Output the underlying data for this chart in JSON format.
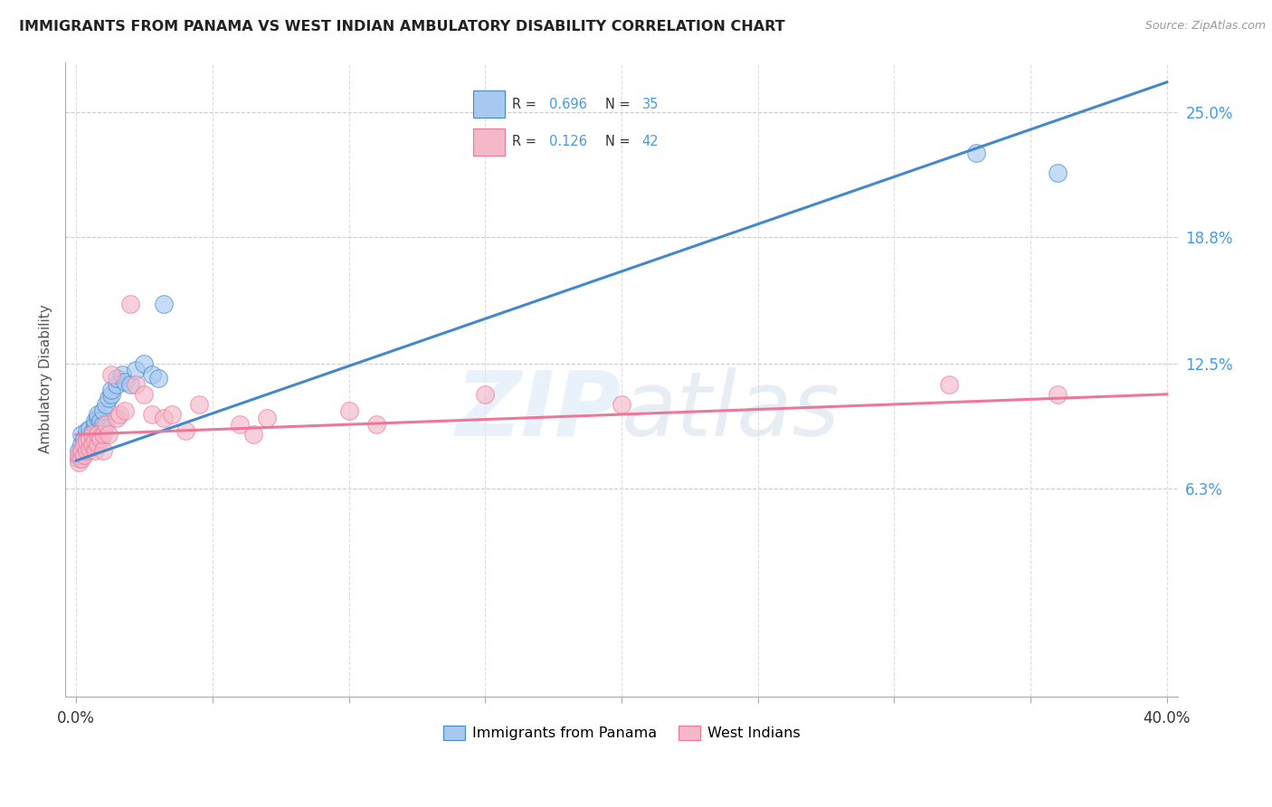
{
  "title": "IMMIGRANTS FROM PANAMA VS WEST INDIAN AMBULATORY DISABILITY CORRELATION CHART",
  "source": "Source: ZipAtlas.com",
  "ylabel": "Ambulatory Disability",
  "color_panama": "#A8C8F0",
  "color_westindian": "#F5B8C8",
  "color_line_panama": "#4488CC",
  "color_line_westindian": "#EE7799",
  "color_r_value": "#4499EE",
  "background_color": "#FFFFFF",
  "xlim": [
    -0.004,
    0.404
  ],
  "ylim": [
    -0.04,
    0.275
  ],
  "ytick_vals": [
    0.063,
    0.125,
    0.188,
    0.25
  ],
  "ytick_labels": [
    "6.3%",
    "12.5%",
    "18.8%",
    "25.0%"
  ],
  "xtick_positions": [
    0.0,
    0.05,
    0.1,
    0.15,
    0.2,
    0.25,
    0.3,
    0.35,
    0.4
  ],
  "panama_line_x0": 0.0,
  "panama_line_y0": 0.077,
  "panama_line_x1": 0.4,
  "panama_line_y1": 0.265,
  "wi_line_x0": 0.0,
  "wi_line_y0": 0.09,
  "wi_line_x1": 0.4,
  "wi_line_y1": 0.11,
  "panama_x": [
    0.001,
    0.001,
    0.002,
    0.002,
    0.002,
    0.003,
    0.003,
    0.004,
    0.004,
    0.005,
    0.005,
    0.006,
    0.007,
    0.007,
    0.008,
    0.008,
    0.009,
    0.01,
    0.01,
    0.011,
    0.012,
    0.013,
    0.013,
    0.015,
    0.015,
    0.017,
    0.018,
    0.02,
    0.022,
    0.025,
    0.028,
    0.03,
    0.032,
    0.33,
    0.36
  ],
  "panama_y": [
    0.078,
    0.082,
    0.08,
    0.085,
    0.09,
    0.083,
    0.088,
    0.086,
    0.092,
    0.088,
    0.093,
    0.091,
    0.095,
    0.097,
    0.098,
    0.1,
    0.097,
    0.095,
    0.102,
    0.105,
    0.108,
    0.11,
    0.112,
    0.115,
    0.118,
    0.12,
    0.116,
    0.115,
    0.122,
    0.125,
    0.12,
    0.118,
    0.155,
    0.23,
    0.22
  ],
  "westindian_x": [
    0.001,
    0.001,
    0.002,
    0.002,
    0.003,
    0.003,
    0.004,
    0.004,
    0.005,
    0.005,
    0.006,
    0.006,
    0.007,
    0.007,
    0.008,
    0.008,
    0.009,
    0.01,
    0.01,
    0.011,
    0.012,
    0.013,
    0.015,
    0.016,
    0.018,
    0.02,
    0.022,
    0.025,
    0.028,
    0.032,
    0.035,
    0.04,
    0.045,
    0.06,
    0.065,
    0.07,
    0.1,
    0.11,
    0.15,
    0.2,
    0.32,
    0.36
  ],
  "westindian_y": [
    0.076,
    0.08,
    0.078,
    0.082,
    0.08,
    0.085,
    0.082,
    0.087,
    0.083,
    0.088,
    0.085,
    0.09,
    0.082,
    0.087,
    0.085,
    0.09,
    0.088,
    0.082,
    0.09,
    0.095,
    0.09,
    0.12,
    0.098,
    0.1,
    0.102,
    0.155,
    0.115,
    0.11,
    0.1,
    0.098,
    0.1,
    0.092,
    0.105,
    0.095,
    0.09,
    0.098,
    0.102,
    0.095,
    0.11,
    0.105,
    0.115,
    0.11
  ]
}
